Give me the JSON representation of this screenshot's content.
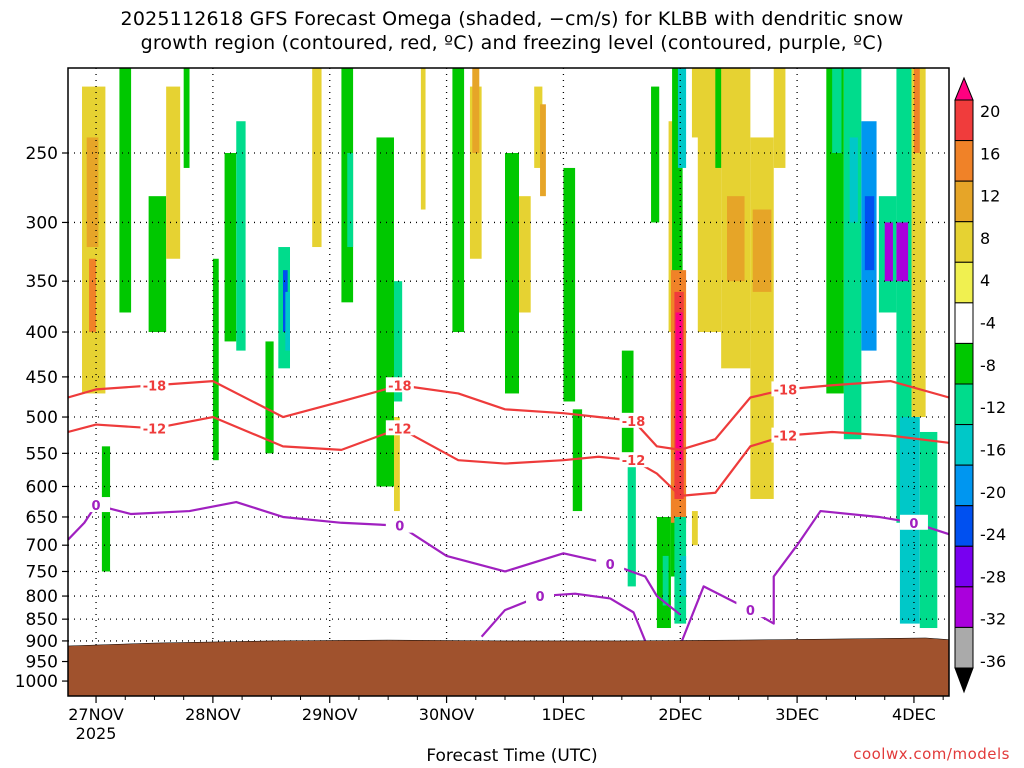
{
  "header": {
    "title_line1": "2025112618 GFS Forecast Omega (shaded, −cm/s) for KLBB with dendritic snow",
    "title_line2": "growth region (contoured, red, ºC) and freezing level (contoured, purple, ºC)"
  },
  "footer": {
    "xlabel": "Forecast Time (UTC)",
    "credit": "coolwx.com/models"
  },
  "colors": {
    "terrain": "#a0522d",
    "dgz_contour": "#ee3b3b",
    "freezing_contour": "#a020c0",
    "gridline": "#000000"
  },
  "chart_data": {
    "type": "heatmap",
    "title": "2025112618 GFS Forecast Omega (shaded, −cm/s) for KLBB with dendritic snow growth region (contoured, red, ºC) and freezing level (contoured, purple, ºC)",
    "xlabel": "Forecast Time (UTC)",
    "ylabel": "",
    "x_ticks": [
      "27NOV",
      "28NOV",
      "29NOV",
      "30NOV",
      "1DEC",
      "2DEC",
      "3DEC",
      "4DEC"
    ],
    "x_year": "2025",
    "x_range_days_from_27nov": [
      -0.24,
      7.3
    ],
    "y_ticks": [
      250,
      300,
      350,
      400,
      450,
      500,
      550,
      600,
      650,
      700,
      750,
      800,
      850,
      900,
      950,
      1000
    ],
    "y_range_hpa": [
      200,
      1040
    ],
    "y_scale": "log-pressure",
    "grid": true,
    "colorbar": {
      "labels": [
        20,
        16,
        12,
        8,
        4,
        -4,
        -8,
        -12,
        -16,
        -20,
        -24,
        -28,
        -32,
        -36
      ],
      "colors": [
        "#ff0080",
        "#f03c3c",
        "#f08228",
        "#e6a528",
        "#e6d232",
        "#f0f050",
        "#ffffff",
        "#00c800",
        "#00dc8c",
        "#00c8c8",
        "#0096f0",
        "#0050f0",
        "#7800f0",
        "#aa00dc",
        "#aaaaaa",
        "#000000"
      ]
    },
    "contours": {
      "dgz_-12": {
        "label": "-12",
        "color": "#ee3b3b",
        "x": [
          -0.24,
          0,
          0.5,
          1.0,
          1.6,
          2.1,
          2.6,
          3.1,
          3.5,
          4.0,
          4.3,
          4.6,
          4.8,
          5.0,
          5.3,
          5.6,
          5.9,
          6.3,
          6.8,
          7.3
        ],
        "p": [
          520,
          510,
          515,
          500,
          540,
          545,
          515,
          560,
          565,
          560,
          555,
          560,
          580,
          615,
          610,
          540,
          525,
          520,
          525,
          535
        ]
      },
      "dgz_-18": {
        "label": "-18",
        "color": "#ee3b3b",
        "x": [
          -0.24,
          0,
          0.5,
          1.0,
          1.6,
          2.1,
          2.6,
          3.1,
          3.5,
          4.0,
          4.3,
          4.6,
          4.8,
          5.0,
          5.3,
          5.6,
          5.9,
          6.3,
          6.8,
          7.3
        ],
        "p": [
          475,
          465,
          460,
          455,
          500,
          480,
          460,
          470,
          490,
          495,
          500,
          505,
          540,
          545,
          530,
          475,
          465,
          460,
          455,
          475
        ]
      },
      "freezing_0_upper": {
        "label": "0",
        "color": "#a020c0",
        "x": [
          -0.24,
          -0.1,
          0,
          0.3,
          0.8,
          1.2,
          1.6,
          2.1,
          2.6,
          3.0,
          3.5,
          4.0,
          4.4,
          4.7,
          4.8,
          5.0
        ],
        "p": [
          690,
          660,
          630,
          645,
          640,
          625,
          650,
          660,
          665,
          720,
          750,
          715,
          735,
          760,
          800,
          840
        ]
      },
      "freezing_0_lower": {
        "label": "0",
        "color": "#a020c0",
        "x": [
          3.3,
          3.5,
          3.8,
          4.1,
          4.4,
          4.6,
          4.7
        ],
        "p": [
          890,
          830,
          800,
          795,
          805,
          835,
          900
        ]
      },
      "freezing_0_east": {
        "label": "0",
        "color": "#a020c0",
        "x": [
          5.0,
          5.2,
          5.6,
          5.8,
          5.8,
          6.0,
          6.2,
          6.7,
          7.0,
          7.3
        ],
        "p": [
          910,
          780,
          830,
          860,
          760,
          700,
          640,
          650,
          660,
          680
        ]
      }
    }
  }
}
